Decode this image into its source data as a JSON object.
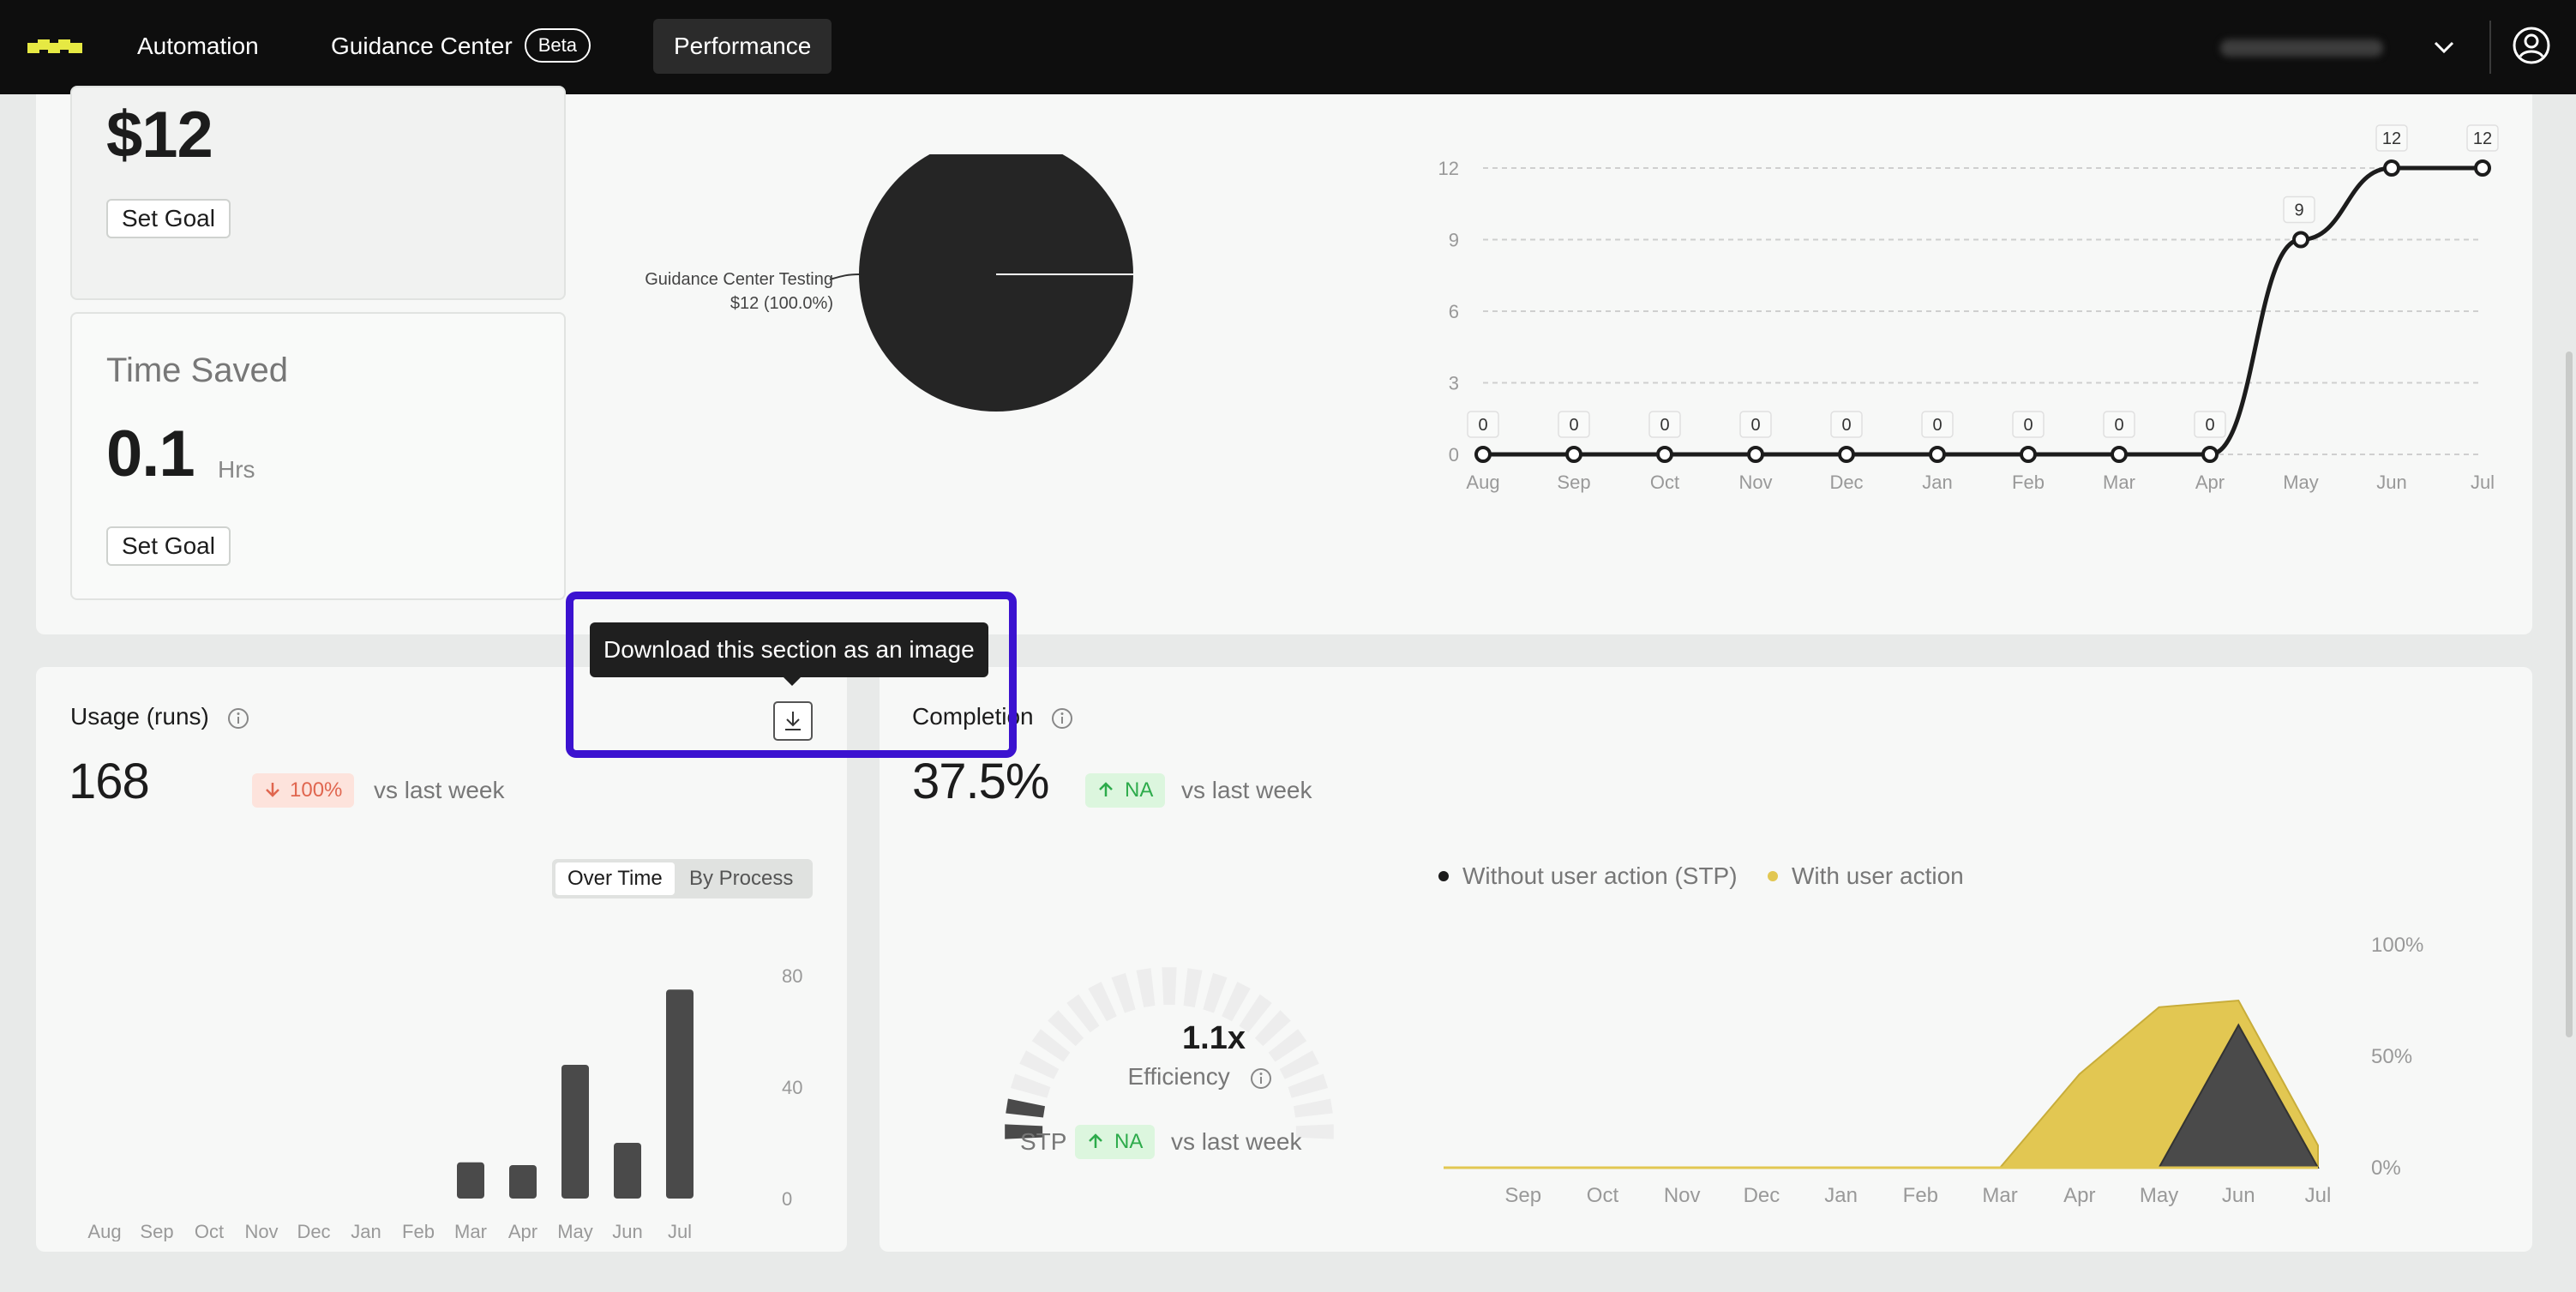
{
  "nav": {
    "automation": "Automation",
    "guidance_center": "Guidance Center",
    "beta": "Beta",
    "performance": "Performance"
  },
  "colors": {
    "accent_yellow": "#e2c752",
    "highlight": "#3b12d0",
    "dark": "#0e0e0e"
  },
  "savings": {
    "value": "$12",
    "set_goal": "Set Goal",
    "pie_label": "Guidance Center Testing",
    "pie_sub": "$12 (100.0%)"
  },
  "time_saved": {
    "title": "Time Saved",
    "value": "0.1",
    "unit": "Hrs",
    "set_goal": "Set Goal"
  },
  "tooltip": {
    "text": "Download this section as an image"
  },
  "usage": {
    "title": "Usage (runs)",
    "value": "168",
    "delta": "100%",
    "vs": "vs last week",
    "tab_over_time": "Over Time",
    "tab_by_process": "By Process"
  },
  "completion": {
    "title": "Completion",
    "value": "37.5%",
    "delta": "NA",
    "vs": "vs last week",
    "legend_stp": "Without user action (STP)",
    "legend_user": "With user action",
    "efficiency_value": "1.1x",
    "efficiency_label": "Efficiency",
    "stp_label": "STP",
    "stp_delta": "NA",
    "stp_vs": "vs last week"
  },
  "chart_data": [
    {
      "type": "line",
      "x": [
        "Aug",
        "Sep",
        "Oct",
        "Nov",
        "Dec",
        "Jan",
        "Feb",
        "Mar",
        "Apr",
        "May",
        "Jun",
        "Jul"
      ],
      "values": [
        0,
        0,
        0,
        0,
        0,
        0,
        0,
        0,
        0,
        9,
        12,
        12
      ],
      "yticks": [
        0,
        3,
        6,
        9,
        12
      ],
      "ylim": [
        0,
        12
      ],
      "grid": true
    },
    {
      "type": "pie",
      "categories": [
        "Guidance Center Testing"
      ],
      "values": [
        100
      ]
    },
    {
      "type": "bar",
      "categories": [
        "Aug",
        "Sep",
        "Oct",
        "Nov",
        "Dec",
        "Jan",
        "Feb",
        "Mar",
        "Apr",
        "May",
        "Jun",
        "Jul"
      ],
      "values": [
        0,
        0,
        0,
        0,
        0,
        0,
        0,
        13,
        12,
        48,
        20,
        75
      ],
      "yticks": [
        0,
        40,
        80
      ],
      "ylim": [
        0,
        80
      ]
    },
    {
      "type": "area",
      "x": [
        "Aug",
        "Sep",
        "Oct",
        "Nov",
        "Dec",
        "Jan",
        "Feb",
        "Mar",
        "Apr",
        "May",
        "Jun",
        "Jul"
      ],
      "xticks": [
        "Sep",
        "Oct",
        "Nov",
        "Dec",
        "Jan",
        "Feb",
        "Mar",
        "Apr",
        "May",
        "Jun",
        "Jul"
      ],
      "yticks": [
        "0%",
        "50%",
        "100%"
      ],
      "series": [
        {
          "name": "With user action",
          "values": [
            0,
            0,
            0,
            0,
            0,
            0,
            0,
            0,
            42,
            72,
            75,
            10
          ]
        },
        {
          "name": "Without user action (STP)",
          "values": [
            0,
            0,
            0,
            0,
            0,
            0,
            0,
            0,
            0,
            0,
            64,
            0
          ]
        }
      ],
      "ylim": [
        0,
        100
      ]
    }
  ]
}
